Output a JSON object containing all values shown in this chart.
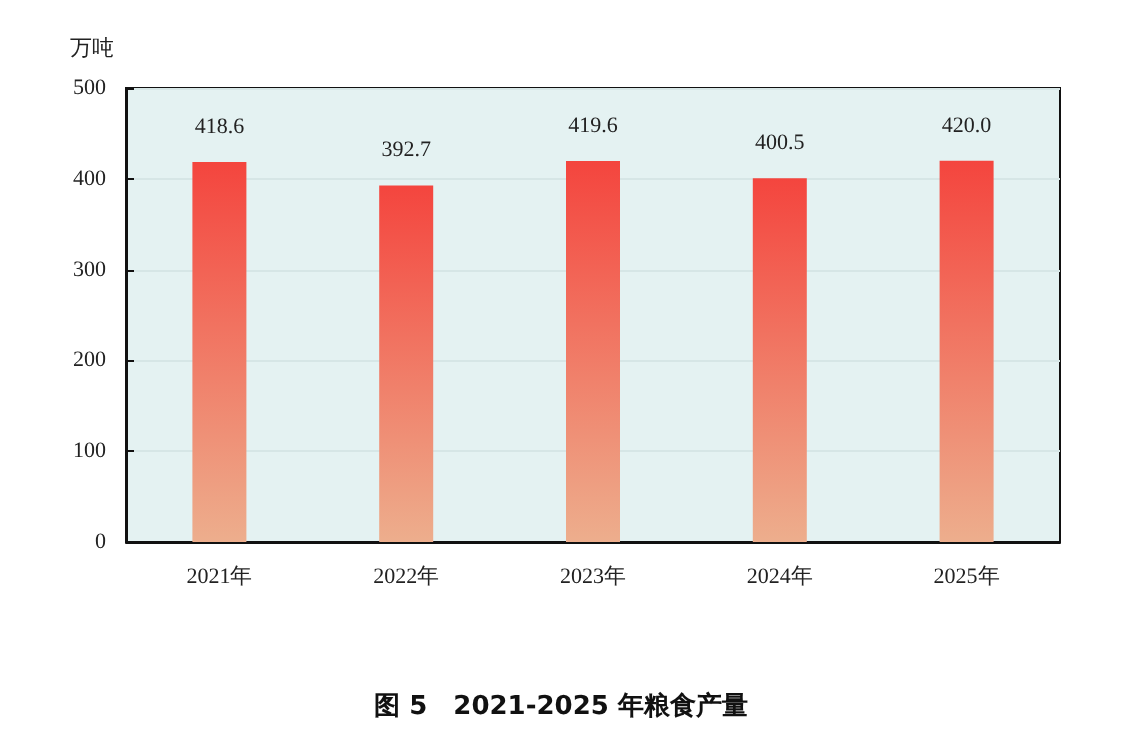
{
  "chart_data": {
    "type": "bar",
    "title": "图 5　2021-2025 年粮食产量",
    "ylabel": "万吨",
    "categories": [
      "2021年",
      "2022年",
      "2023年",
      "2024年",
      "2025年"
    ],
    "values": [
      418.6,
      392.7,
      419.6,
      400.5,
      420.0
    ],
    "value_labels": [
      "418.6",
      "392.7",
      "419.6",
      "400.5",
      "420.0"
    ],
    "color": "#f4453e",
    "ylim": [
      0,
      500
    ],
    "yticks": [
      0,
      100,
      200,
      300,
      400,
      500
    ],
    "grid": "y"
  }
}
